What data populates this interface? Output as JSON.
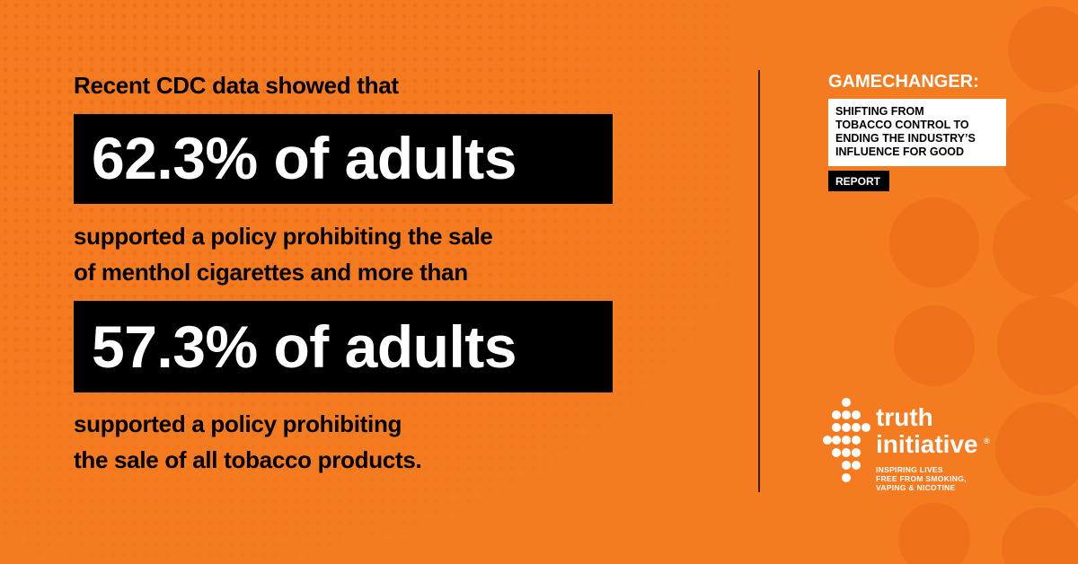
{
  "main": {
    "intro": "Recent CDC data showed that",
    "stat1": "62.3% of adults",
    "middle": [
      "supported a policy prohibiting the sale",
      "of menthol cigarettes and more than"
    ],
    "stat2": "57.3% of adults",
    "closing": [
      "supported a policy prohibiting",
      "the sale of all tobacco products."
    ]
  },
  "report": {
    "title": "GAMECHANGER:",
    "subtitle": [
      "SHIFTING FROM",
      "TOBACCO CONTROL TO",
      "ENDING THE INDUSTRY’S",
      "INFLUENCE FOR GOOD"
    ],
    "tag": "REPORT"
  },
  "logo": {
    "name": [
      "truth",
      "initiative"
    ],
    "mark": "®",
    "tagline": [
      "INSPIRING LIVES",
      "FREE FROM SMOKING,",
      "VAPING & NICOTINE"
    ]
  }
}
